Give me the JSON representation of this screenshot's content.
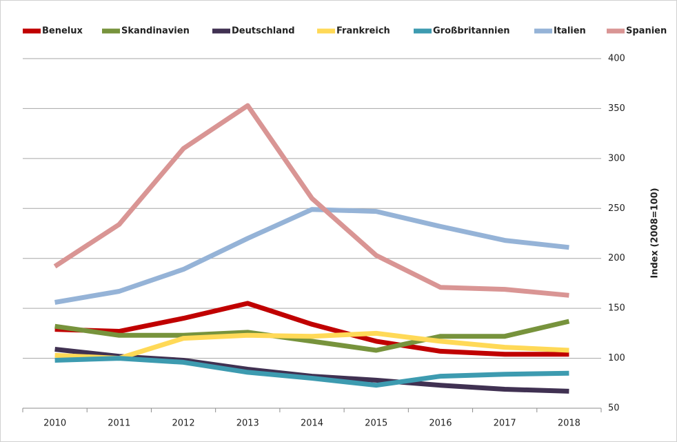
{
  "chart_data": {
    "type": "line",
    "y_label": "Index (2008=100)",
    "categories": [
      "2010",
      "2011",
      "2012",
      "2013",
      "2014",
      "2015",
      "2016",
      "2017",
      "2018"
    ],
    "series": [
      {
        "name": "Benelux",
        "color": "#c00000",
        "values": [
          129,
          127,
          140,
          155,
          134,
          117,
          107,
          104,
          104
        ]
      },
      {
        "name": "Skandinavien",
        "color": "#77933c",
        "values": [
          132,
          123,
          123,
          126,
          117,
          108,
          122,
          122,
          137
        ]
      },
      {
        "name": "Deutschland",
        "color": "#403152",
        "values": [
          109,
          102,
          98,
          89,
          82,
          78,
          73,
          69,
          67
        ]
      },
      {
        "name": "Frankreich",
        "color": "#ffd957",
        "values": [
          103,
          100,
          120,
          123,
          122,
          125,
          117,
          111,
          108
        ]
      },
      {
        "name": "Großbritannien",
        "color": "#3d9bb0",
        "values": [
          98,
          100,
          96,
          86,
          80,
          73,
          82,
          84,
          85
        ]
      },
      {
        "name": "Italien",
        "color": "#95b3d7",
        "values": [
          156,
          167,
          189,
          220,
          249,
          247,
          232,
          218,
          211
        ]
      },
      {
        "name": "Spanien",
        "color": "#d99594",
        "values": [
          192,
          234,
          310,
          353,
          260,
          203,
          171,
          169,
          163
        ]
      }
    ],
    "ylim": [
      50,
      400
    ],
    "yticks": [
      50,
      100,
      150,
      200,
      250,
      300,
      350,
      400
    ],
    "grid": true,
    "legend": "top"
  }
}
